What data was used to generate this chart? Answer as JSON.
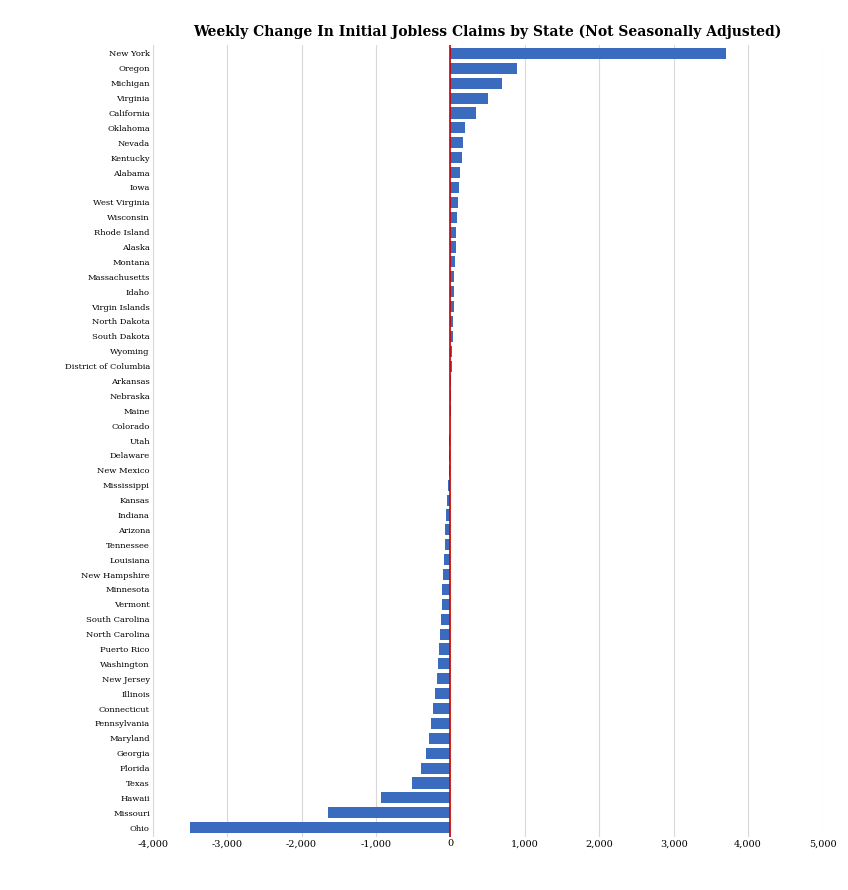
{
  "title": "Weekly Change In Initial Jobless Claims by State (Not Seasonally Adjusted)",
  "states": [
    "New York",
    "Oregon",
    "Michigan",
    "Virginia",
    "California",
    "Oklahoma",
    "Nevada",
    "Kentucky",
    "Alabama",
    "Iowa",
    "West Virginia",
    "Wisconsin",
    "Rhode Island",
    "Alaska",
    "Montana",
    "Massachusetts",
    "Idaho",
    "Virgin Islands",
    "North Dakota",
    "South Dakota",
    "Wyoming",
    "District of Columbia",
    "Arkansas",
    "Nebraska",
    "Maine",
    "Colorado",
    "Utah",
    "Delaware",
    "New Mexico",
    "Mississippi",
    "Kansas",
    "Indiana",
    "Arizona",
    "Tennessee",
    "Louisiana",
    "New Hampshire",
    "Minnesota",
    "Vermont",
    "South Carolina",
    "North Carolina",
    "Puerto Rico",
    "Washington",
    "New Jersey",
    "Illinois",
    "Connecticut",
    "Pennsylvania",
    "Maryland",
    "Georgia",
    "Florida",
    "Texas",
    "Hawaii",
    "Missouri",
    "Ohio"
  ],
  "values": [
    3700,
    900,
    700,
    500,
    350,
    195,
    170,
    150,
    135,
    115,
    98,
    88,
    78,
    70,
    60,
    52,
    48,
    42,
    36,
    30,
    22,
    18,
    13,
    8,
    4,
    -2,
    -12,
    -18,
    -25,
    -38,
    -48,
    -58,
    -68,
    -78,
    -88,
    -95,
    -108,
    -118,
    -128,
    -138,
    -148,
    -165,
    -185,
    -205,
    -228,
    -258,
    -288,
    -328,
    -390,
    -520,
    -930,
    -1650,
    -3500
  ],
  "bar_color": "#3a6bbf",
  "zeroline_color": "#cc0000",
  "background_color": "#ffffff",
  "gridline_color": "#d8d8d8",
  "xlim": [
    -4000,
    5000
  ],
  "xticks": [
    -4000,
    -3000,
    -2000,
    -1000,
    0,
    1000,
    2000,
    3000,
    4000,
    5000
  ],
  "figsize": [
    8.48,
    8.9
  ],
  "dpi": 100,
  "title_fontsize": 10,
  "label_fontsize": 6.0,
  "tick_fontsize": 7.0,
  "bar_height": 0.75
}
